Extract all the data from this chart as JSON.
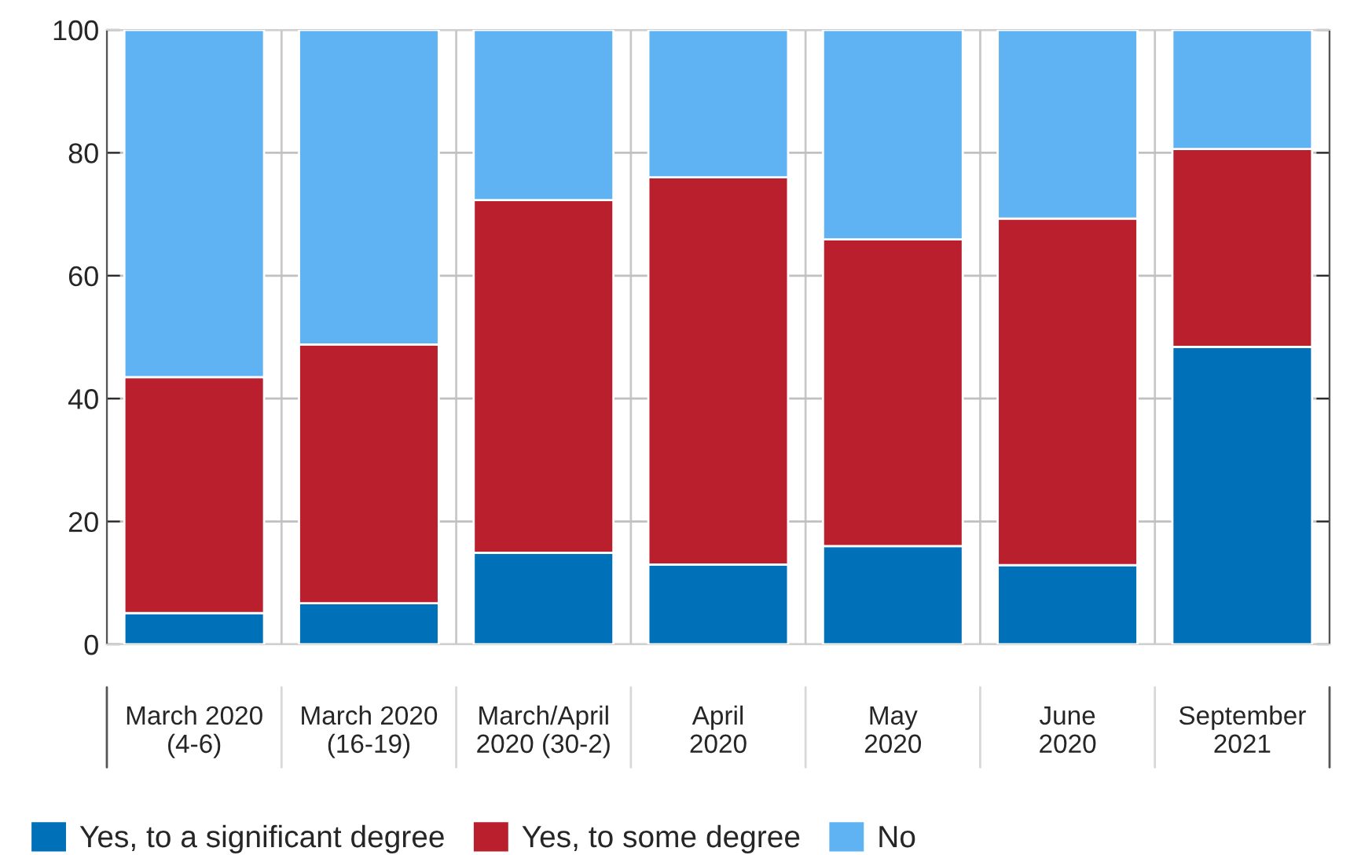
{
  "chart_data": {
    "type": "bar",
    "stacked": true,
    "categories": [
      "March 2020\n(4-6)",
      "March 2020\n(16-19)",
      "March/April\n2020 (30-2)",
      "April\n2020",
      "May\n2020",
      "June\n2020",
      "September\n2021"
    ],
    "series": [
      {
        "name": "Yes, to a significant degree",
        "color": "#0070b8",
        "values": [
          5.1,
          6.7,
          14.9,
          13.0,
          16.0,
          12.9,
          48.4
        ]
      },
      {
        "name": "Yes, to some degree",
        "color": "#b91f2d",
        "values": [
          38.4,
          42.1,
          57.4,
          63.0,
          49.9,
          56.4,
          32.2
        ]
      },
      {
        "name": "No",
        "color": "#5fb3f2",
        "values": [
          56.5,
          51.2,
          27.7,
          24.0,
          34.1,
          30.7,
          19.4
        ]
      }
    ],
    "ylim": [
      0,
      100
    ],
    "yticks": [
      0,
      20,
      40,
      60,
      80,
      100
    ],
    "grid": true,
    "legend": "bottom"
  }
}
